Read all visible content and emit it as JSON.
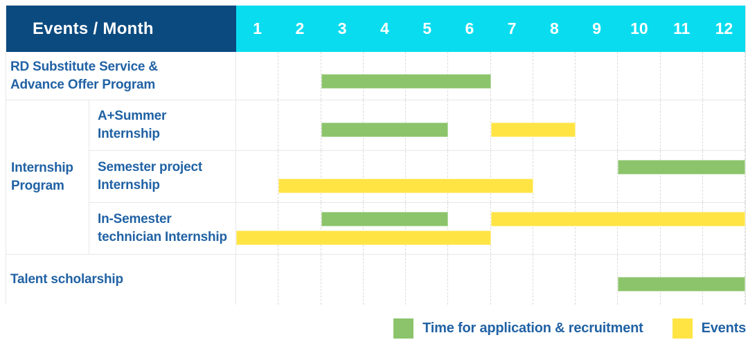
{
  "colors": {
    "header_bg": "#0B4A7F",
    "months_bg": "#0ADCEF",
    "header_text": "#FFFFFF",
    "label_text": "#2162A4",
    "grid_border": "#E7E7E7",
    "month_gridline": "#DADADA",
    "application_color": "#8BC46A",
    "events_color": "#FFE444"
  },
  "chart_data": {
    "type": "bar",
    "subtype": "gantt-timeline",
    "title": "Events / Month",
    "x_axis": {
      "unit": "month",
      "ticks": [
        "1",
        "2",
        "3",
        "4",
        "5",
        "6",
        "7",
        "8",
        "9",
        "10",
        "11",
        "12"
      ],
      "range_months": [
        1,
        12
      ],
      "grid": "dashed-vertical"
    },
    "legend": [
      {
        "key": "application",
        "label": "Time for application & recruitment",
        "color": "#8BC46A"
      },
      {
        "key": "events",
        "label": "Events",
        "color": "#FFE444"
      }
    ],
    "group_label": {
      "label": "Internship Program",
      "lines": [
        "Internship",
        "Program"
      ],
      "row_indexes": [
        1,
        2,
        3
      ]
    },
    "rows": [
      {
        "label": "RD Substitute Service & Advance Offer Program",
        "lines": [
          "RD Substitute Service &",
          "Advance Offer Program"
        ],
        "group": "",
        "bars": [
          {
            "series": "application",
            "start_month": 3,
            "end_month": 6,
            "lane": "single"
          }
        ]
      },
      {
        "label": "A+Summer Internship",
        "lines": [
          "A+Summer",
          "Internship"
        ],
        "group": "Internship Program",
        "bars": [
          {
            "series": "application",
            "start_month": 3,
            "end_month": 5,
            "lane": "single"
          },
          {
            "series": "events",
            "start_month": 7,
            "end_month": 8,
            "lane": "single"
          }
        ]
      },
      {
        "label": "Semester project Internship",
        "lines": [
          "Semester project",
          "Internship"
        ],
        "group": "Internship Program",
        "bars": [
          {
            "series": "application",
            "start_month": 10,
            "end_month": 12,
            "lane": "upper"
          },
          {
            "series": "events",
            "start_month": 2,
            "end_month": 7,
            "lane": "lower"
          }
        ]
      },
      {
        "label": "In-Semester technician Internship",
        "lines": [
          "In-Semester",
          "technician Internship"
        ],
        "group": "Internship Program",
        "bars": [
          {
            "series": "application",
            "start_month": 3,
            "end_month": 5,
            "lane": "upper"
          },
          {
            "series": "events",
            "start_month": 7,
            "end_month": 12,
            "lane": "upper"
          },
          {
            "series": "events",
            "start_month": 1,
            "end_month": 6,
            "lane": "lower"
          }
        ]
      },
      {
        "label": "Talent scholarship",
        "lines": [
          "Talent scholarship"
        ],
        "group": "",
        "bars": [
          {
            "series": "application",
            "start_month": 10,
            "end_month": 12,
            "lane": "single"
          }
        ]
      }
    ]
  }
}
